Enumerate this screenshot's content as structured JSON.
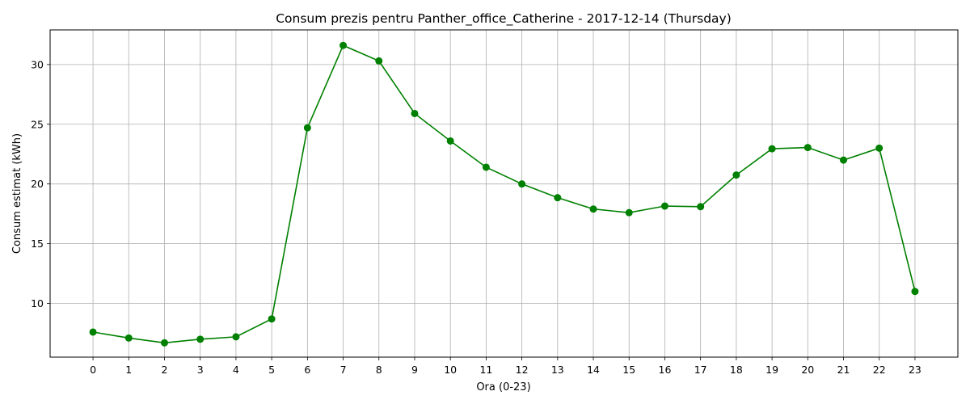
{
  "chart_data": {
    "type": "line",
    "title": "Consum prezis pentru Panther_office_Catherine - 2017-12-14 (Thursday)",
    "xlabel": "Ora (0-23)",
    "ylabel": "Consum estimat (kWh)",
    "x": [
      0,
      1,
      2,
      3,
      4,
      5,
      6,
      7,
      8,
      9,
      10,
      11,
      12,
      13,
      14,
      15,
      16,
      17,
      18,
      19,
      20,
      21,
      22,
      23
    ],
    "series": [
      {
        "values": [
          7.6,
          7.1,
          6.7,
          7.0,
          7.2,
          8.7,
          24.7,
          31.6,
          30.3,
          25.9,
          23.6,
          21.4,
          20.0,
          18.85,
          17.9,
          17.6,
          18.15,
          18.1,
          20.75,
          22.95,
          23.05,
          22.0,
          23.0,
          11.0
        ],
        "color": "#008000",
        "marker": "circle"
      }
    ],
    "xticks": [
      "0",
      "1",
      "2",
      "3",
      "4",
      "5",
      "6",
      "7",
      "8",
      "9",
      "10",
      "11",
      "12",
      "13",
      "14",
      "15",
      "16",
      "17",
      "18",
      "19",
      "20",
      "21",
      "22",
      "23"
    ],
    "yticks": [
      "10",
      "15",
      "20",
      "25",
      "30"
    ],
    "ytick_values": [
      10,
      15,
      20,
      25,
      30
    ],
    "xlim": [
      -1.2,
      24.2
    ],
    "ylim": [
      5.5,
      32.9
    ],
    "grid": true,
    "legend": "none"
  }
}
